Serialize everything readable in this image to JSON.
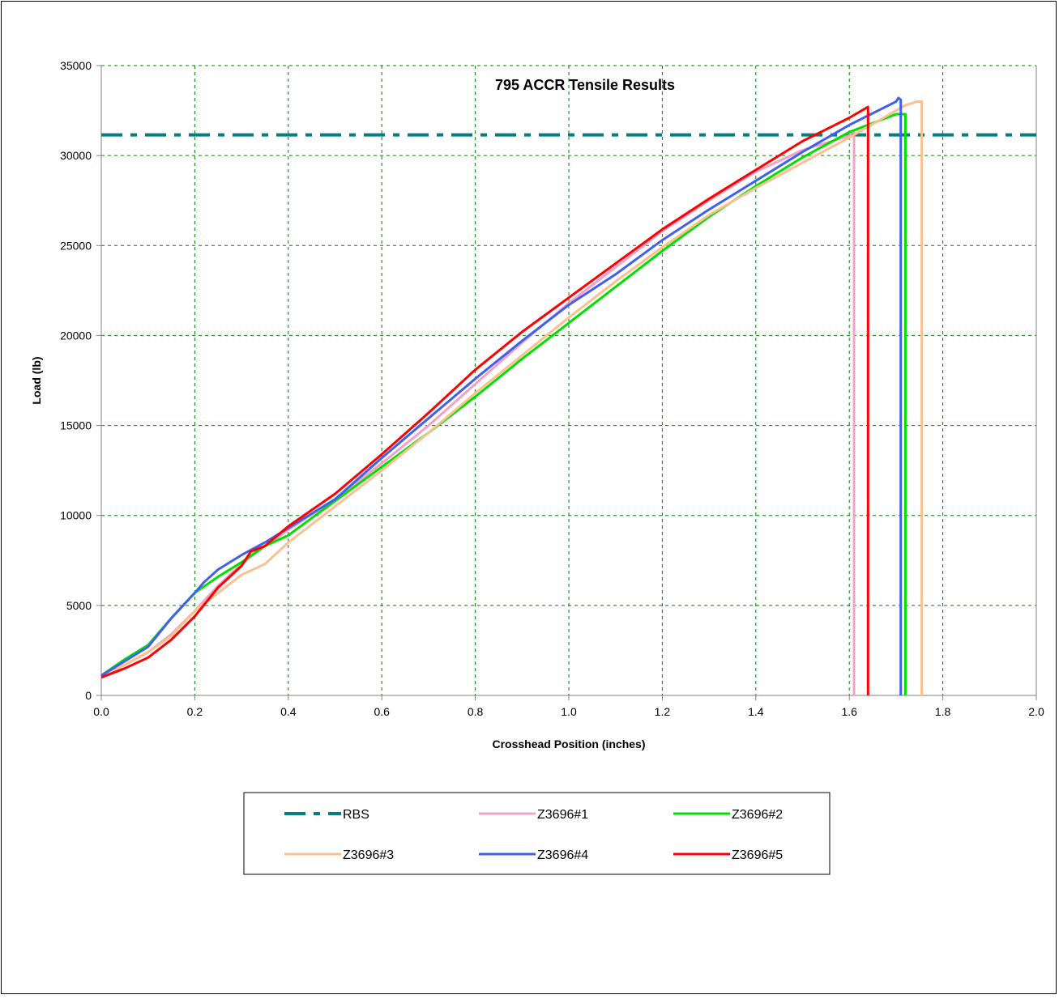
{
  "chart_data": {
    "type": "line",
    "title": "795 ACCR Tensile Results",
    "xlabel": "Crosshead Position (inches)",
    "ylabel": "Load (lb)",
    "xlim": [
      0.0,
      2.0
    ],
    "ylim": [
      0,
      35000
    ],
    "x_ticks": [
      "0.0",
      "0.2",
      "0.4",
      "0.6",
      "0.8",
      "1.0",
      "1.2",
      "1.4",
      "1.6",
      "1.8",
      "2.0"
    ],
    "y_ticks": [
      "0",
      "5000",
      "10000",
      "15000",
      "20000",
      "25000",
      "30000",
      "35000"
    ],
    "grid": true,
    "legend_position": "bottom",
    "series": [
      {
        "name": "RBS",
        "color": "#008080",
        "style": "dash-dot",
        "x": [
          0.0,
          2.0
        ],
        "y": [
          31150,
          31150
        ]
      },
      {
        "name": "Z3696#1",
        "color": "#f4a0c8",
        "style": "solid",
        "x": [
          0.0,
          0.05,
          0.1,
          0.15,
          0.2,
          0.25,
          0.3,
          0.35,
          0.4,
          0.5,
          0.6,
          0.7,
          0.8,
          0.9,
          1.0,
          1.1,
          1.2,
          1.3,
          1.4,
          1.5,
          1.6,
          1.605,
          1.61,
          1.61
        ],
        "y": [
          1000,
          1700,
          2400,
          3400,
          4700,
          6100,
          7300,
          8300,
          9200,
          10900,
          12900,
          15000,
          17300,
          19600,
          21800,
          23800,
          25800,
          27500,
          29100,
          30300,
          31100,
          31300,
          31300,
          0
        ]
      },
      {
        "name": "Z3696#2",
        "color": "#00e000",
        "style": "solid",
        "x": [
          0.0,
          0.05,
          0.1,
          0.15,
          0.2,
          0.25,
          0.3,
          0.35,
          0.4,
          0.5,
          0.6,
          0.7,
          0.8,
          0.9,
          1.0,
          1.1,
          1.2,
          1.3,
          1.4,
          1.5,
          1.6,
          1.7,
          1.72,
          1.72
        ],
        "y": [
          1100,
          2000,
          2800,
          4300,
          5700,
          6600,
          7400,
          8300,
          8900,
          10800,
          12700,
          14600,
          16600,
          18700,
          20700,
          22700,
          24700,
          26600,
          28300,
          29900,
          31300,
          32300,
          32300,
          0
        ]
      },
      {
        "name": "Z3696#3",
        "color": "#fac090",
        "style": "solid",
        "x": [
          0.0,
          0.05,
          0.1,
          0.15,
          0.2,
          0.25,
          0.3,
          0.35,
          0.4,
          0.5,
          0.6,
          0.7,
          0.8,
          0.9,
          1.0,
          1.1,
          1.2,
          1.3,
          1.4,
          1.5,
          1.6,
          1.7,
          1.72,
          1.745,
          1.755,
          1.755
        ],
        "y": [
          1000,
          1700,
          2400,
          3300,
          4700,
          5700,
          6700,
          7300,
          8500,
          10500,
          12500,
          14600,
          16800,
          18900,
          21000,
          23000,
          24900,
          26700,
          28200,
          29600,
          31000,
          32500,
          32800,
          33000,
          33000,
          0
        ]
      },
      {
        "name": "Z3696#4",
        "color": "#4060f0",
        "style": "solid",
        "x": [
          0.0,
          0.05,
          0.1,
          0.15,
          0.2,
          0.22,
          0.25,
          0.3,
          0.35,
          0.4,
          0.5,
          0.6,
          0.7,
          0.8,
          0.9,
          1.0,
          1.1,
          1.2,
          1.3,
          1.4,
          1.5,
          1.6,
          1.7,
          1.705,
          1.71,
          1.71
        ],
        "y": [
          1100,
          1900,
          2700,
          4300,
          5700,
          6300,
          7000,
          7800,
          8500,
          9300,
          10900,
          13200,
          15400,
          17600,
          19700,
          21700,
          23400,
          25300,
          27000,
          28600,
          30200,
          31700,
          33000,
          33200,
          33100,
          0
        ]
      },
      {
        "name": "Z3696#5",
        "color": "#ff0000",
        "style": "solid",
        "x": [
          0.0,
          0.05,
          0.1,
          0.15,
          0.2,
          0.25,
          0.3,
          0.32,
          0.35,
          0.4,
          0.5,
          0.6,
          0.7,
          0.8,
          0.9,
          1.0,
          1.1,
          1.2,
          1.3,
          1.4,
          1.5,
          1.6,
          1.64,
          1.64
        ],
        "y": [
          1000,
          1500,
          2100,
          3100,
          4400,
          6000,
          7200,
          8000,
          8300,
          9400,
          11200,
          13400,
          15700,
          18100,
          20200,
          22100,
          24000,
          25900,
          27600,
          29200,
          30800,
          32100,
          32700,
          0
        ]
      }
    ]
  }
}
